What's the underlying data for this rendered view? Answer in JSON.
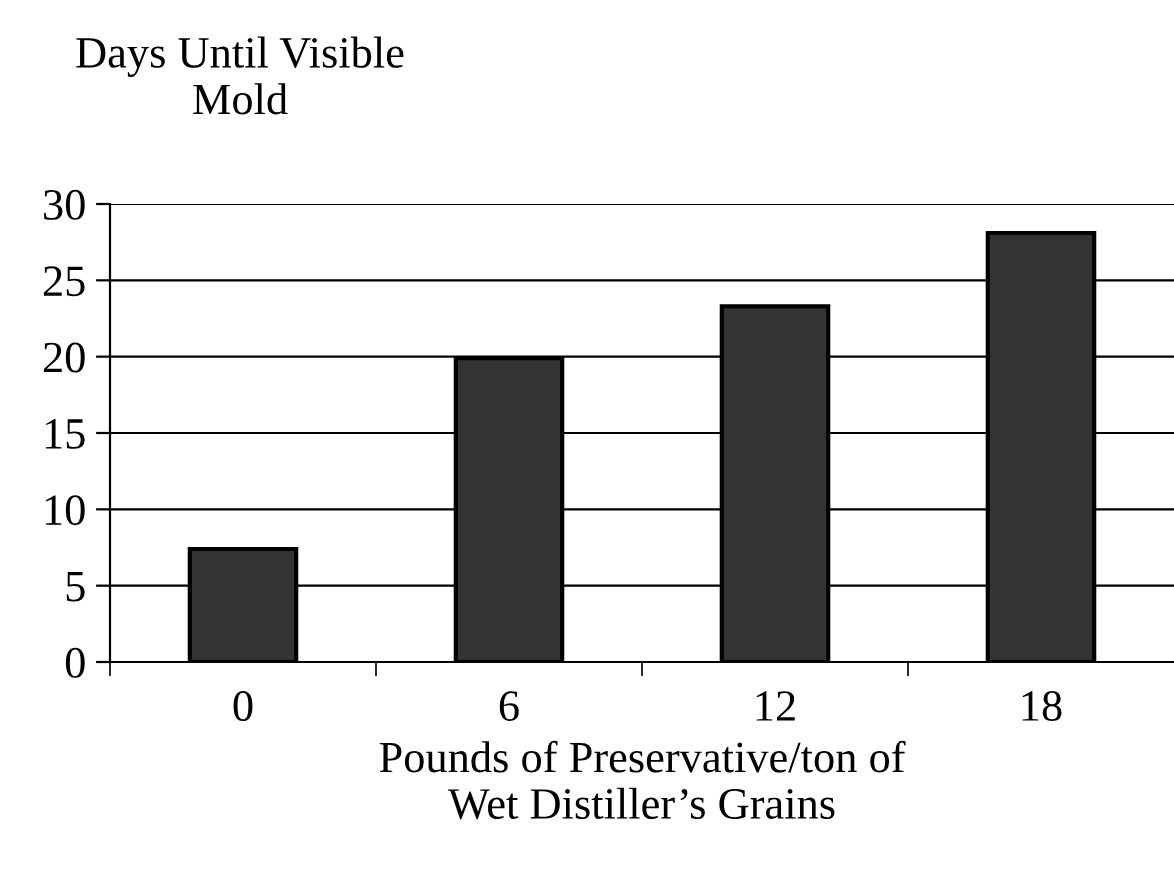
{
  "chart_data": {
    "type": "bar",
    "ylabel": "Days Until Visible\nMold",
    "xlabel": "Pounds of Preservative/ton of\nWet Distiller’s Grains",
    "categories": [
      "0",
      "6",
      "12",
      "18"
    ],
    "values": [
      7.4,
      19.9,
      23.3,
      28.1
    ],
    "color": "#333333",
    "ylim": [
      0,
      30
    ],
    "yticks": [
      0,
      5,
      10,
      15,
      20,
      25,
      30
    ],
    "grid": "y",
    "legend": false
  }
}
